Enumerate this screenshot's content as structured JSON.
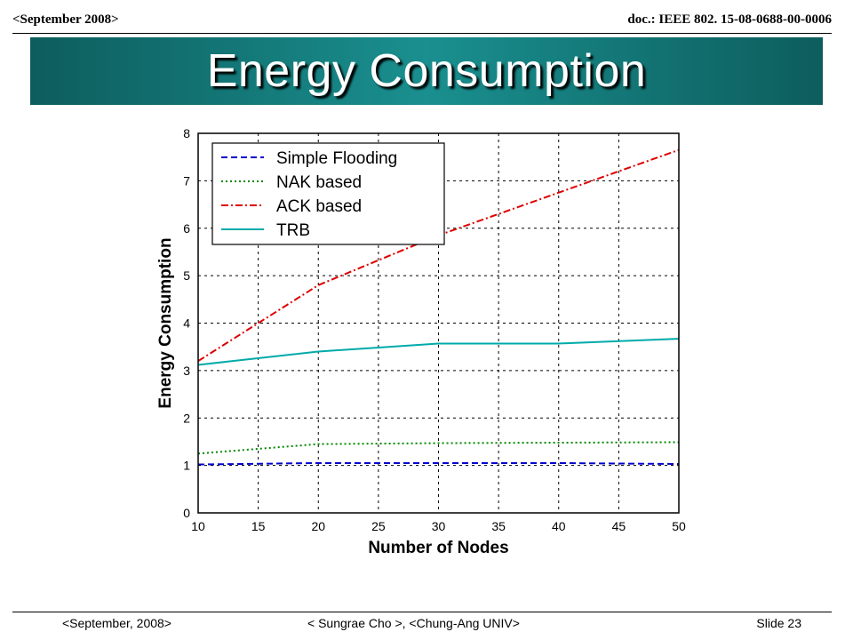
{
  "header": {
    "left": "<September 2008>",
    "right": "doc.: IEEE 802. 15-08-0688-00-0006"
  },
  "slide_title": "Energy Consumption",
  "footer": {
    "left": "<September, 2008>",
    "middle": "< Sungrae Cho >, <Chung-Ang UNIV>",
    "right": "Slide 23"
  },
  "chart_data": {
    "type": "line",
    "xlabel": "Number of Nodes",
    "ylabel": "Energy Consumption",
    "xlim": [
      10,
      50
    ],
    "ylim": [
      0,
      8
    ],
    "xticks": [
      10,
      15,
      20,
      25,
      30,
      35,
      40,
      45,
      50
    ],
    "yticks": [
      0,
      1,
      2,
      3,
      4,
      5,
      6,
      7,
      8
    ],
    "grid": true,
    "legend_position": "top-left",
    "x": [
      10,
      20,
      30,
      40,
      50
    ],
    "series": [
      {
        "name": "Simple Flooding",
        "values": [
          1.02,
          1.05,
          1.05,
          1.05,
          1.03
        ],
        "color": "#0000cc",
        "dash": "dashed"
      },
      {
        "name": "NAK based",
        "values": [
          1.25,
          1.45,
          1.47,
          1.48,
          1.49
        ],
        "color": "#008800",
        "dash": "dotted"
      },
      {
        "name": "ACK based",
        "values": [
          3.2,
          4.8,
          5.85,
          6.75,
          7.65
        ],
        "color": "#dd0000",
        "dash": "dashdot"
      },
      {
        "name": "TRB",
        "values": [
          3.12,
          3.4,
          3.57,
          3.57,
          3.67
        ],
        "color": "#00aaaa",
        "dash": "solid"
      }
    ]
  }
}
